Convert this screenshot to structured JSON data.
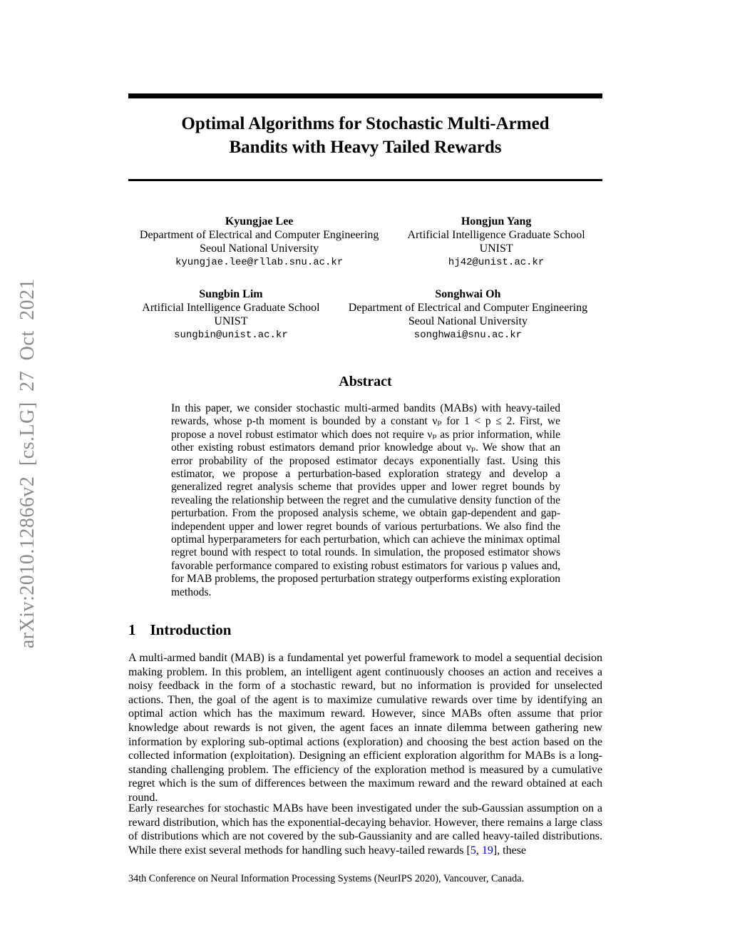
{
  "watermark": {
    "text": "arXiv:2010.12866v2 [cs.LG] 27 Oct 2021"
  },
  "title": {
    "line1": "Optimal Algorithms for Stochastic Multi-Armed",
    "line2": "Bandits with Heavy Tailed Rewards"
  },
  "authors": [
    {
      "name": "Kyungjae Lee",
      "affil1": "Department of Electrical and Computer Engineering",
      "affil2": "Seoul National University",
      "email": "kyungjae.lee@rllab.snu.ac.kr"
    },
    {
      "name": "Hongjun Yang",
      "affil1": "Artificial Intelligence Graduate School",
      "affil2": "UNIST",
      "email": "hj42@unist.ac.kr"
    },
    {
      "name": "Sungbin Lim",
      "affil1": "Artificial Intelligence Graduate School",
      "affil2": "UNIST",
      "email": "sungbin@unist.ac.kr"
    },
    {
      "name": "Songhwai Oh",
      "affil1": "Department of Electrical and Computer Engineering",
      "affil2": "Seoul National University",
      "email": "songhwai@snu.ac.kr"
    }
  ],
  "abstract": {
    "heading": "Abstract",
    "text": "In this paper, we consider stochastic multi-armed bandits (MABs) with heavy-tailed rewards, whose p-th moment is bounded by a constant νₚ for 1 < p ≤ 2. First, we propose a novel robust estimator which does not require νₚ as prior information, while other existing robust estimators demand prior knowledge about νₚ. We show that an error probability of the proposed estimator decays exponentially fast. Using this estimator, we propose a perturbation-based exploration strategy and develop a generalized regret analysis scheme that provides upper and lower regret bounds by revealing the relationship between the regret and the cumulative density function of the perturbation. From the proposed analysis scheme, we obtain gap-dependent and gap-independent upper and lower regret bounds of various perturbations. We also find the optimal hyperparameters for each perturbation, which can achieve the minimax optimal regret bound with respect to total rounds. In simulation, the proposed estimator shows favorable performance compared to existing robust estimators for various p values and, for MAB problems, the proposed perturbation strategy outperforms existing exploration methods."
  },
  "section1": {
    "number": "1",
    "heading": "Introduction",
    "para1": "A multi-armed bandit (MAB) is a fundamental yet powerful framework to model a sequential decision making problem. In this problem, an intelligent agent continuously chooses an action and receives a noisy feedback in the form of a stochastic reward, but no information is provided for unselected actions. Then, the goal of the agent is to maximize cumulative rewards over time by identifying an optimal action which has the maximum reward. However, since MABs often assume that prior knowledge about rewards is not given, the agent faces an innate dilemma between gathering new information by exploring sub-optimal actions (exploration) and choosing the best action based on the collected information (exploitation). Designing an efficient exploration algorithm for MABs is a long-standing challenging problem. The efficiency of the exploration method is measured by a cumulative regret which is the sum of differences between the maximum reward and the reward obtained at each round.",
    "para2_segments": [
      {
        "text": "Early researches for stochastic MABs have been investigated under the sub-Gaussian assumption on a reward distribution, which has the exponential-decaying behavior. However, there remains a large class of distributions which are not covered by the sub-Gaussianity and are called heavy-tailed distributions. While there exist several methods for handling such heavy-tailed rewards [",
        "cite": false
      },
      {
        "text": "5",
        "cite": true
      },
      {
        "text": ", ",
        "cite": false
      },
      {
        "text": "19",
        "cite": true
      },
      {
        "text": "], these",
        "cite": false
      }
    ]
  },
  "footer": {
    "text": "34th Conference on Neural Information Processing Systems (NeurIPS 2020), Vancouver, Canada."
  },
  "colors": {
    "citation": "#0000cc",
    "watermark_gray": "#8b8b8b",
    "rule_black": "#000000"
  }
}
